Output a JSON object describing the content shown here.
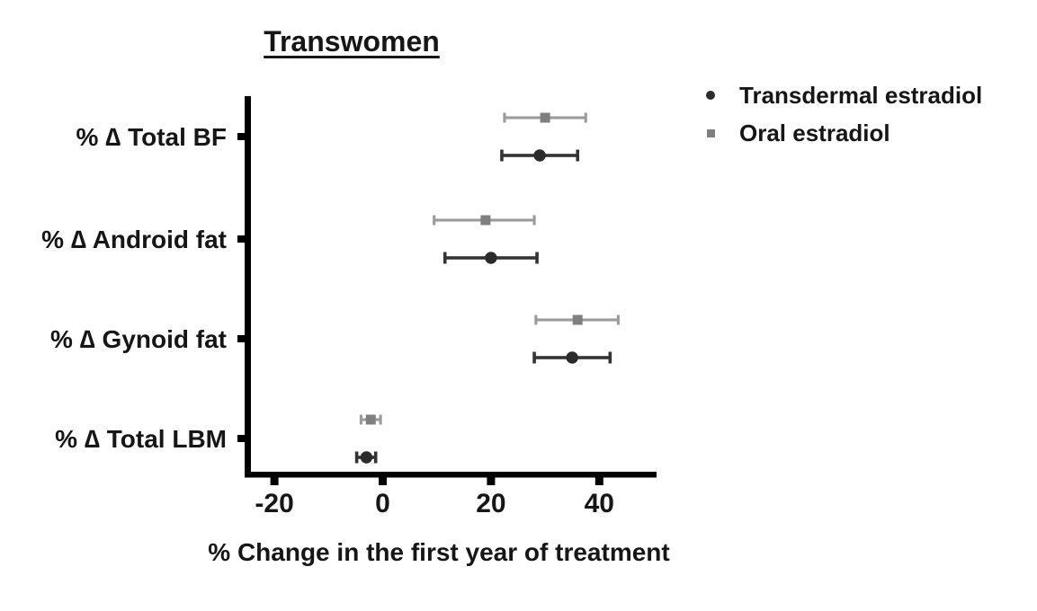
{
  "figure": {
    "background": "#ffffff",
    "text_color": "#161616",
    "axis_color": "#000000"
  },
  "chart_data": {
    "type": "scatter",
    "subtype": "horizontal-dot-plot-with-error-bars",
    "title": "Transwomen",
    "xlabel": "% Change in the first year of treatment",
    "ylabel": "",
    "categories": [
      "% ∆ Total BF",
      "% ∆ Android fat",
      "% ∆ Gynoid fat",
      "% ∆ Total LBM"
    ],
    "xticks": [
      -20,
      0,
      20,
      40
    ],
    "xtick_labels": [
      "-20",
      "0",
      "20",
      "40"
    ],
    "xlim": [
      -25.5,
      50.5
    ],
    "grid": false,
    "legend_position": "top-right",
    "series": [
      {
        "name": "Transdermal estradiol",
        "marker": "circle",
        "marker_color": "#2b2b2b",
        "line_color": "#343434",
        "points": [
          {
            "category": "% ∆ Total BF",
            "value": 29,
            "low": 22,
            "high": 36
          },
          {
            "category": "% ∆ Android fat",
            "value": 20,
            "low": 11.5,
            "high": 28.5
          },
          {
            "category": "% ∆ Gynoid fat",
            "value": 35,
            "low": 28,
            "high": 42
          },
          {
            "category": "% ∆ Total LBM",
            "value": -3,
            "low": -4.8,
            "high": -1.3
          }
        ]
      },
      {
        "name": "Oral estradiol",
        "marker": "square",
        "marker_color": "#7f7f7f",
        "line_color": "#9b9b9b",
        "points": [
          {
            "category": "% ∆ Total BF",
            "value": 30,
            "low": 22.5,
            "high": 37.5
          },
          {
            "category": "% ∆ Android fat",
            "value": 19,
            "low": 9.5,
            "high": 28
          },
          {
            "category": "% ∆ Gynoid fat",
            "value": 36,
            "low": 28.3,
            "high": 43.5
          },
          {
            "category": "% ∆ Total LBM",
            "value": -2.2,
            "low": -4,
            "high": -0.4
          }
        ]
      }
    ]
  }
}
